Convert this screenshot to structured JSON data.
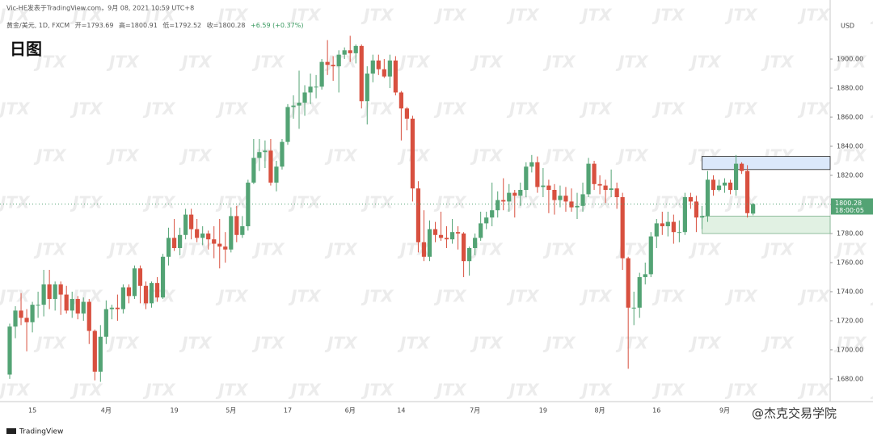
{
  "header": "Vic-HE发表于TradingView.com，9月 08, 2021 10:59 UTC+8",
  "watermark": "JTX",
  "footer_logo": "TradingView",
  "credit": "@杰克交易学院",
  "chart_data": {
    "type": "candlestick",
    "title": "日图",
    "symbol": "黄金/美元, 1D, FXCM",
    "ohlc_labels": [
      "开=",
      "高=",
      "低=",
      "收="
    ],
    "change_label": "+6.59 (+0.37%)",
    "currency": "USD",
    "countdown": "18:00:05",
    "up_color": "#53a374",
    "down_color": "#d8503f",
    "categories": [
      null,
      null,
      null,
      null,
      "15",
      null,
      null,
      null,
      null,
      null,
      null,
      null,
      null,
      null,
      null,
      null,
      null,
      "4月",
      null,
      null,
      null,
      null,
      null,
      null,
      null,
      null,
      null,
      null,
      null,
      "19",
      null,
      null,
      null,
      null,
      null,
      null,
      null,
      null,
      null,
      "5月",
      null,
      null,
      null,
      null,
      null,
      null,
      null,
      null,
      null,
      "17",
      null,
      null,
      null,
      null,
      null,
      null,
      null,
      null,
      null,
      null,
      "6月",
      null,
      null,
      null,
      null,
      null,
      null,
      null,
      null,
      "14",
      null,
      null,
      null,
      null,
      null,
      null,
      null,
      null,
      null,
      null,
      null,
      null,
      "7月",
      null,
      null,
      null,
      null,
      null,
      null,
      null,
      null,
      null,
      null,
      null,
      "19",
      null,
      null,
      null,
      null,
      null,
      null,
      null,
      null,
      null,
      "8月",
      null,
      null,
      null,
      null,
      null,
      null,
      null,
      null,
      null,
      "16",
      null,
      null,
      null,
      null,
      null,
      null,
      null,
      null,
      null,
      null,
      null,
      "9月",
      null,
      null,
      null,
      null,
      null
    ],
    "open": [
      1683,
      1716,
      1727,
      1722,
      1719,
      1731,
      1731,
      1745,
      1735,
      1745,
      1738,
      1727,
      1735,
      1725,
      1733,
      1713,
      1685,
      1709,
      1728,
      1729,
      1728,
      1743,
      1737,
      1756,
      1744,
      1732,
      1746,
      1736,
      1764,
      1777,
      1770,
      1779,
      1793,
      1783,
      1777,
      1780,
      1776,
      1773,
      1771,
      1769,
      1792,
      1779,
      1785,
      1815,
      1832,
      1836,
      1837,
      1815,
      1826,
      1843,
      1867,
      1868,
      1870,
      1877,
      1881,
      1881,
      1898,
      1896,
      1895,
      1903,
      1906,
      1904,
      1909,
      1871,
      1890,
      1899,
      1893,
      1888,
      1899,
      1877,
      1866,
      1859,
      1811,
      1774,
      1764,
      1783,
      1779,
      1777,
      1776,
      1781,
      1780,
      1761,
      1770,
      1777,
      1787,
      1791,
      1796,
      1803,
      1802,
      1808,
      1806,
      1810,
      1826,
      1829,
      1812,
      1813,
      1810,
      1803,
      1806,
      1802,
      1798,
      1799,
      1807,
      1828,
      1814,
      1813,
      1810,
      1811,
      1805,
      1763,
      1729,
      1729,
      1750,
      1752,
      1778,
      1787,
      1785,
      1788,
      1781,
      1781,
      1805,
      1802,
      1791,
      1792,
      1817,
      1810,
      1813,
      1815,
      1810,
      1828,
      1823,
      1793.69
    ],
    "high": [
      1718,
      1730,
      1739,
      1728,
      1733,
      1740,
      1755,
      1755,
      1747,
      1747,
      1744,
      1740,
      1737,
      1736,
      1735,
      1714,
      1717,
      1734,
      1731,
      1738,
      1745,
      1745,
      1758,
      1758,
      1747,
      1747,
      1750,
      1766,
      1784,
      1790,
      1784,
      1797,
      1797,
      1790,
      1785,
      1782,
      1785,
      1790,
      1781,
      1798,
      1799,
      1792,
      1817,
      1845,
      1845,
      1844,
      1845,
      1830,
      1845,
      1869,
      1875,
      1892,
      1882,
      1890,
      1889,
      1900,
      1913,
      1902,
      1906,
      1908,
      1916,
      1910,
      1910,
      1895,
      1903,
      1903,
      1900,
      1903,
      1902,
      1878,
      1867,
      1861,
      1816,
      1796,
      1789,
      1788,
      1795,
      1785,
      1790,
      1785,
      1781,
      1771,
      1780,
      1795,
      1795,
      1815,
      1809,
      1818,
      1814,
      1810,
      1815,
      1829,
      1834,
      1833,
      1825,
      1817,
      1814,
      1813,
      1812,
      1811,
      1808,
      1815,
      1832,
      1830,
      1820,
      1817,
      1824,
      1815,
      1808,
      1764,
      1740,
      1753,
      1760,
      1781,
      1790,
      1795,
      1795,
      1793,
      1789,
      1808,
      1808,
      1806,
      1799,
      1823,
      1820,
      1817,
      1818,
      1817,
      1834,
      1829,
      1827,
      1800.91
    ],
    "low": [
      1680,
      1708,
      1717,
      1699,
      1712,
      1722,
      1723,
      1728,
      1727,
      1724,
      1725,
      1722,
      1721,
      1720,
      1704,
      1679,
      1678,
      1704,
      1721,
      1720,
      1725,
      1732,
      1735,
      1732,
      1728,
      1729,
      1733,
      1735,
      1758,
      1768,
      1765,
      1776,
      1776,
      1774,
      1772,
      1769,
      1763,
      1756,
      1760,
      1767,
      1774,
      1777,
      1782,
      1814,
      1823,
      1825,
      1813,
      1809,
      1824,
      1841,
      1859,
      1852,
      1861,
      1869,
      1873,
      1879,
      1889,
      1885,
      1877,
      1900,
      1898,
      1897,
      1866,
      1855,
      1884,
      1889,
      1887,
      1880,
      1875,
      1844,
      1851,
      1802,
      1767,
      1761,
      1761,
      1774,
      1775,
      1770,
      1773,
      1769,
      1750,
      1751,
      1765,
      1775,
      1783,
      1785,
      1791,
      1796,
      1795,
      1791,
      1799,
      1805,
      1822,
      1808,
      1805,
      1794,
      1793,
      1798,
      1795,
      1795,
      1790,
      1795,
      1805,
      1810,
      1807,
      1801,
      1805,
      1797,
      1755,
      1687,
      1717,
      1722,
      1745,
      1750,
      1770,
      1779,
      1778,
      1773,
      1774,
      1779,
      1797,
      1781,
      1783,
      1788,
      1806,
      1809,
      1808,
      1807,
      1806,
      1821,
      1791,
      1792.52
    ],
    "close": [
      1716,
      1727,
      1722,
      1719,
      1731,
      1731,
      1745,
      1735,
      1745,
      1738,
      1727,
      1735,
      1725,
      1733,
      1713,
      1685,
      1709,
      1728,
      1729,
      1728,
      1743,
      1737,
      1756,
      1744,
      1732,
      1746,
      1736,
      1764,
      1777,
      1770,
      1779,
      1793,
      1783,
      1777,
      1780,
      1776,
      1773,
      1771,
      1769,
      1792,
      1779,
      1785,
      1815,
      1832,
      1836,
      1837,
      1815,
      1826,
      1843,
      1867,
      1868,
      1870,
      1877,
      1881,
      1881,
      1898,
      1896,
      1895,
      1903,
      1906,
      1904,
      1909,
      1871,
      1890,
      1899,
      1893,
      1888,
      1899,
      1877,
      1866,
      1859,
      1811,
      1774,
      1764,
      1783,
      1779,
      1777,
      1776,
      1781,
      1780,
      1761,
      1770,
      1777,
      1787,
      1791,
      1796,
      1803,
      1802,
      1808,
      1806,
      1810,
      1826,
      1829,
      1812,
      1813,
      1810,
      1803,
      1806,
      1802,
      1798,
      1799,
      1807,
      1828,
      1814,
      1813,
      1810,
      1811,
      1805,
      1763,
      1729,
      1729,
      1750,
      1752,
      1778,
      1787,
      1785,
      1788,
      1781,
      1781,
      1805,
      1802,
      1791,
      1792,
      1817,
      1810,
      1813,
      1815,
      1810,
      1828,
      1823,
      1794,
      1800.28
    ],
    "ylim": [
      1664.4,
      1940.6
    ],
    "yticks": [
      {
        "value": 1680,
        "label": "1680.00"
      },
      {
        "value": 1700,
        "label": "1700.00"
      },
      {
        "value": 1720,
        "label": "1720.00"
      },
      {
        "value": 1740,
        "label": "1740.00"
      },
      {
        "value": 1760,
        "label": "1760.00"
      },
      {
        "value": 1780,
        "label": "1780.00"
      },
      {
        "value": 1800,
        "label": "1800.00"
      },
      {
        "value": 1820,
        "label": "1820.00"
      },
      {
        "value": 1840,
        "label": "1840.00"
      },
      {
        "value": 1860,
        "label": "1860.00"
      },
      {
        "value": 1880,
        "label": "1880.00"
      },
      {
        "value": 1900,
        "label": "1900.00"
      }
    ],
    "zones": [
      {
        "start": 122,
        "low": 1824,
        "high": 1833,
        "color": "#dbe8fa",
        "border": "#222222"
      },
      {
        "start": 122,
        "low": 1780,
        "high": 1792,
        "color": "#e1f1e3",
        "border": "#7bb08a"
      }
    ]
  }
}
